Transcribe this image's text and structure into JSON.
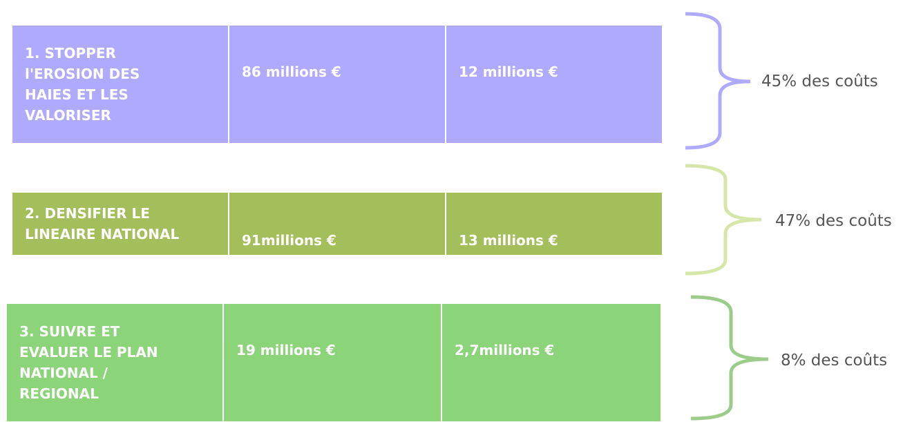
{
  "rows": [
    {
      "label": "1. STOPPER\nl'EROSION DES\nHAIES ET LES\nVALORISER",
      "cost_a": "86 millions €",
      "cost_b": "12 millions €",
      "share": "45% des coûts"
    },
    {
      "label": "2. DENSIFIER LE\nLINEAIRE NATIONAL",
      "cost_a": "91millions €",
      "cost_b": "13 millions €",
      "share": "47% des coûts"
    },
    {
      "label": "3. SUIVRE ET\nEVALUER LE PLAN\nNATIONAL /\nREGIONAL",
      "cost_a": "19 millions €",
      "cost_b": "2,7millions €",
      "share": "8% des coûts"
    }
  ]
}
